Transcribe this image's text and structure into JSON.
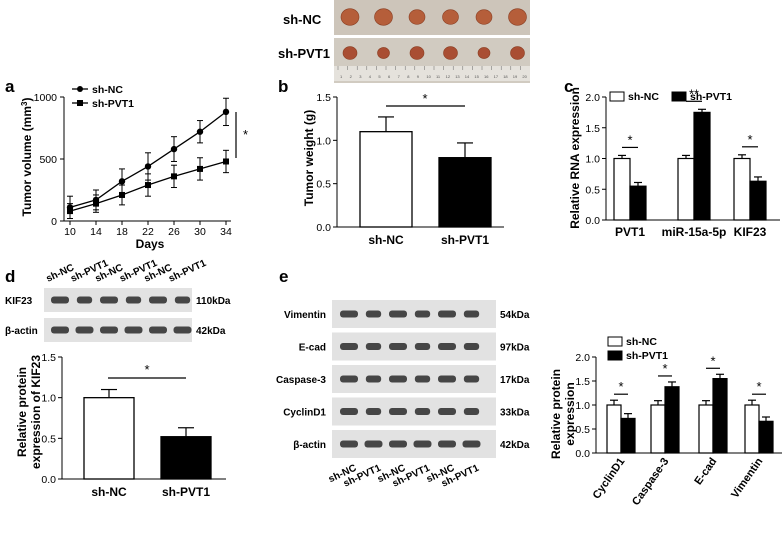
{
  "figure": {
    "photo": {
      "row_labels": [
        "sh-NC",
        "sh-PVT1"
      ],
      "ruler_numbers": [
        "1",
        "2",
        "3",
        "4",
        "5",
        "6",
        "7",
        "8",
        "9",
        "10",
        "11",
        "12",
        "13",
        "14",
        "15",
        "16",
        "17",
        "18",
        "19",
        "20"
      ],
      "tumors_per_row": 6
    },
    "panels": {
      "a": {
        "letter": "a",
        "chart_data": {
          "type": "line",
          "xlabel": "Days",
          "ylabel": "Tumor volume (mm",
          "ylabel_sup": "3",
          "ylabel_close": ")",
          "x": [
            10,
            14,
            18,
            22,
            26,
            30,
            34
          ],
          "ylim": [
            0,
            1000
          ],
          "yticks": [
            0,
            500,
            1000
          ],
          "series": [
            {
              "name": "sh-NC",
              "marker": "circle",
              "values": [
                110,
                170,
                320,
                440,
                580,
                720,
                880
              ],
              "errors": [
                90,
                80,
                100,
                110,
                100,
                90,
                110
              ]
            },
            {
              "name": "sh-PVT1",
              "marker": "square",
              "values": [
                80,
                140,
                210,
                290,
                360,
                420,
                480
              ],
              "errors": [
                60,
                70,
                80,
                90,
                90,
                90,
                90
              ]
            }
          ],
          "significance": "*"
        }
      },
      "b": {
        "letter": "b",
        "chart_data": {
          "type": "bar",
          "categories": [
            "sh-NC",
            "sh-PVT1"
          ],
          "values": [
            1.1,
            0.8
          ],
          "errors": [
            0.17,
            0.17
          ],
          "fills": [
            "#ffffff",
            "#000000"
          ],
          "ylabel": "Tumor weight (g)",
          "ylim": [
            0,
            1.5
          ],
          "yticks": [
            "0.0",
            "0.5",
            "1.0",
            "1.5"
          ],
          "significance": "*"
        }
      },
      "c": {
        "letter": "c",
        "chart_data": {
          "type": "bar",
          "categories": [
            "PVT1",
            "miR-15a-5p",
            "KIF23"
          ],
          "series": [
            {
              "name": "sh-NC",
              "fill": "#ffffff",
              "values": [
                1.0,
                1.0,
                1.0
              ],
              "errors": [
                0.05,
                0.05,
                0.06
              ]
            },
            {
              "name": "sh-PVT1",
              "fill": "#000000",
              "values": [
                0.55,
                1.75,
                0.63
              ],
              "errors": [
                0.06,
                0.05,
                0.07
              ]
            }
          ],
          "ylabel": "Relative RNA expression",
          "ylim": [
            0,
            2.0
          ],
          "yticks": [
            "0.0",
            "0.5",
            "1.0",
            "1.5",
            "2.0"
          ],
          "significance": [
            "*",
            "**",
            "*"
          ]
        }
      },
      "d": {
        "letter": "d",
        "blot": {
          "lane_labels": [
            "sh-NC",
            "sh-PVT1",
            "sh-NC",
            "sh-PVT1",
            "sh-NC",
            "sh-PVT1"
          ],
          "rows": [
            {
              "name": "KIF23",
              "size": "110kDa"
            },
            {
              "name": "β-actin",
              "size": "42kDa"
            }
          ]
        },
        "chart_data": {
          "type": "bar",
          "categories": [
            "sh-NC",
            "sh-PVT1"
          ],
          "values": [
            1.0,
            0.52
          ],
          "errors": [
            0.1,
            0.11
          ],
          "fills": [
            "#ffffff",
            "#000000"
          ],
          "ylabel_lines": [
            "Relative protein",
            "expression of KIF23"
          ],
          "ylim": [
            0,
            1.5
          ],
          "yticks": [
            "0.0",
            "0.5",
            "1.0",
            "1.5"
          ],
          "significance": "*"
        }
      },
      "e": {
        "letter": "e",
        "blot": {
          "lane_labels": [
            "sh-NC",
            "sh-PVT1",
            "sh-NC",
            "sh-PVT1",
            "sh-NC",
            "sh-PVT1"
          ],
          "rows": [
            {
              "name": "Vimentin",
              "size": "54kDa"
            },
            {
              "name": "E-cad",
              "size": "97kDa"
            },
            {
              "name": "Caspase-3",
              "size": "17kDa"
            },
            {
              "name": "CyclinD1",
              "size": "33kDa"
            },
            {
              "name": "β-actin",
              "size": "42kDa"
            }
          ]
        },
        "chart_data": {
          "type": "bar",
          "categories": [
            "CyclinD1",
            "Caspase-3",
            "E-cad",
            "Vimentin"
          ],
          "series": [
            {
              "name": "sh-NC",
              "fill": "#ffffff",
              "values": [
                1.0,
                1.0,
                1.0,
                1.0
              ],
              "errors": [
                0.1,
                0.09,
                0.09,
                0.1
              ]
            },
            {
              "name": "sh-PVT1",
              "fill": "#000000",
              "values": [
                0.72,
                1.38,
                1.55,
                0.66
              ],
              "errors": [
                0.1,
                0.1,
                0.09,
                0.09
              ]
            }
          ],
          "ylabel_lines": [
            "Relative  protein",
            "expression"
          ],
          "ylim": [
            0,
            2.0
          ],
          "yticks": [
            "0.0",
            "0.5",
            "1.0",
            "1.5",
            "2.0"
          ],
          "significance": [
            "*",
            "*",
            "*",
            "*"
          ]
        }
      }
    }
  }
}
